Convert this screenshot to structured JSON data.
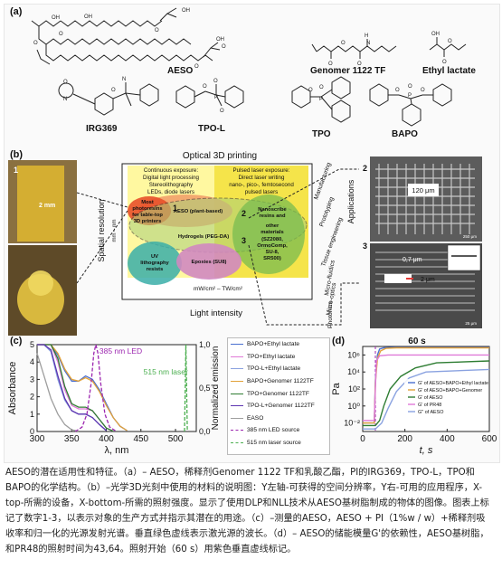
{
  "panel_a": {
    "label": "(a)",
    "compounds": [
      "AESO",
      "Genomer 1122 TF",
      "Ethyl lactate",
      "IRG369",
      "TPO-L",
      "TPO",
      "BAPO"
    ]
  },
  "panel_b": {
    "label": "(b)",
    "title": "Optical 3D printing",
    "left_box": [
      "Continuous exposure:",
      "Digital light processing",
      "Stereolithography",
      "LEDs, diode lasers"
    ],
    "right_box": [
      "Pulsed laser exposure:",
      "Direct laser writing",
      "nano-, pico-, femtosecond",
      "pulsed lasers"
    ],
    "regions": {
      "most": [
        "Most",
        "photoresins",
        "for table-top",
        "3D printers"
      ],
      "aeso": "AESO (plant-based)",
      "hydrogels": "Hydrogels (PEG-DA)",
      "nanoscribe": [
        "Nanoscribe",
        "resins and",
        "other",
        "materials",
        "(SZ2080,",
        "OrmoComp,",
        "SU-8,",
        "SR500)"
      ],
      "uv": [
        "UV",
        "lithography",
        "resists"
      ],
      "epoxies": "Epoxies (SU8)"
    },
    "numbers": [
      "1",
      "2",
      "3"
    ],
    "ylabel": "Spatial resolution",
    "yunit": "mm – nm",
    "xunit": "mW/cm² – TW/cm²",
    "xlabel": "Light intensity",
    "applications_title": "Applications",
    "applications": [
      "Manufacturing",
      "Prototyping",
      "Tissue engineering",
      "Micro-fluidics",
      "Micro-optics",
      "Photonics"
    ],
    "photo_labels": [
      "1",
      "2",
      "3"
    ],
    "annotations": {
      "mm": "2 mm",
      "um120": "120 μm",
      "um07": "0,7 μm",
      "um2": "2 μm",
      "scale250": "250 μm",
      "scale25": "25 μm"
    }
  },
  "panel_c": {
    "label": "(c)",
    "chart_data": {
      "type": "line",
      "xlabel": "λ, nm",
      "ylabel": "Absorbance",
      "y2label": "Normalized emission",
      "xlim": [
        300,
        530
      ],
      "ylim": [
        0,
        5
      ],
      "y2lim": [
        0,
        1.0
      ],
      "xticks": [
        300,
        350,
        400,
        450,
        500
      ],
      "yticks": [
        0,
        1,
        2,
        3,
        4,
        5
      ],
      "y2ticks": [
        "0,0",
        "0,5",
        "1,0"
      ],
      "annotations": [
        "385 nm LED",
        "515 nm laser"
      ],
      "series": [
        {
          "name": "BAPO+Ethyl lactate",
          "color": "#4a6fd0",
          "x": [
            300,
            310,
            320,
            330,
            340,
            350,
            360,
            370,
            380,
            390,
            400,
            410,
            420,
            430
          ],
          "y": [
            5,
            5,
            5,
            4.4,
            3.5,
            2.9,
            2.9,
            3.2,
            3.0,
            2.4,
            1.6,
            0.8,
            0.3,
            0.05
          ]
        },
        {
          "name": "TPO+Ethyl lactate",
          "color": "#e07ad8",
          "x": [
            300,
            310,
            320,
            330,
            340,
            350,
            360,
            370,
            380,
            390,
            400,
            410
          ],
          "y": [
            5,
            5,
            5,
            4.0,
            2.4,
            1.5,
            1.3,
            1.3,
            1.2,
            0.7,
            0.2,
            0.02
          ]
        },
        {
          "name": "TPO-L+Ethyl lactate",
          "color": "#8aa2e0",
          "x": [
            300,
            310,
            320,
            330,
            340,
            350,
            360,
            370,
            380,
            390,
            400
          ],
          "y": [
            5,
            5,
            4.6,
            3.0,
            1.8,
            1.2,
            1.0,
            1.0,
            0.8,
            0.4,
            0.05
          ]
        },
        {
          "name": "BAPO+Genomer 1122TF",
          "color": "#e2a23a",
          "x": [
            300,
            310,
            320,
            330,
            340,
            350,
            360,
            370,
            380,
            390,
            400,
            410,
            420,
            430
          ],
          "y": [
            5,
            5,
            5,
            4.5,
            3.6,
            3.0,
            2.9,
            3.1,
            2.9,
            2.3,
            1.5,
            0.8,
            0.3,
            0.05
          ]
        },
        {
          "name": "TPO+Genomer 1122TF",
          "color": "#2e7d32",
          "x": [
            300,
            310,
            320,
            330,
            340,
            350,
            360,
            370,
            380,
            390,
            400,
            410
          ],
          "y": [
            5,
            5,
            5,
            4.2,
            2.6,
            1.6,
            1.4,
            1.4,
            1.2,
            0.7,
            0.2,
            0.02
          ]
        },
        {
          "name": "TPO-L+Genomer 1122TF",
          "color": "#5e35b1",
          "x": [
            300,
            310,
            320,
            330,
            340,
            350,
            360,
            370,
            380,
            390,
            400
          ],
          "y": [
            5,
            5,
            4.7,
            3.2,
            1.9,
            1.2,
            1.0,
            1.0,
            0.8,
            0.4,
            0.05
          ]
        },
        {
          "name": "EASO",
          "color": "#9e9e9e",
          "x": [
            300,
            310,
            320,
            330,
            340,
            350,
            360
          ],
          "y": [
            4.5,
            3.2,
            1.9,
            1.0,
            0.4,
            0.1,
            0.02
          ]
        },
        {
          "name": "385 nm LED source",
          "color": "#9c27b0",
          "dash": "4 2",
          "axis": "y2",
          "x": [
            355,
            365,
            372,
            378,
            382,
            385,
            388,
            392,
            398,
            405,
            415
          ],
          "y": [
            0,
            0.05,
            0.2,
            0.55,
            0.9,
            1.0,
            0.9,
            0.55,
            0.2,
            0.05,
            0
          ]
        },
        {
          "name": "515 nm laser source",
          "color": "#4caf50",
          "dash": "4 2",
          "axis": "y2",
          "x": [
            513,
            514,
            515,
            516,
            517
          ],
          "y": [
            0,
            0.5,
            1.0,
            0.5,
            0
          ]
        }
      ]
    }
  },
  "panel_d": {
    "label": "(d)",
    "chart_data": {
      "type": "line",
      "title": "60 s",
      "xlabel": "t, s",
      "ylabel": "Pa",
      "xlim": [
        0,
        600
      ],
      "ylim_log10": [
        -3,
        7
      ],
      "xticks": [
        0,
        200,
        400,
        600
      ],
      "yticks": [
        "10⁻²",
        "10⁰",
        "10²",
        "10⁴",
        "10⁶"
      ],
      "marker_x": 60,
      "series": [
        {
          "name": "G' of AESO+BAPO+Ethyl lactate",
          "color": "#4a6fd0",
          "x": [
            0,
            55,
            60,
            70,
            80,
            100,
            150,
            300,
            600
          ],
          "y": [
            0.01,
            0.01,
            1000,
            1000000,
            5000000,
            7000000,
            8000000,
            8000000,
            8000000
          ]
        },
        {
          "name": "G' of AESO+BAPO+Genomer",
          "color": "#e2a23a",
          "x": [
            0,
            55,
            60,
            70,
            85,
            110,
            160,
            300,
            600
          ],
          "y": [
            0.01,
            0.01,
            500,
            400000,
            3000000,
            6000000,
            7000000,
            7000000,
            7000000
          ]
        },
        {
          "name": "G' of AESO",
          "color": "#2e7d32",
          "x": [
            0,
            60,
            80,
            100,
            130,
            180,
            250,
            350,
            600
          ],
          "y": [
            0.005,
            0.005,
            0.02,
            1,
            100,
            3000,
            30000,
            120000,
            200000
          ]
        },
        {
          "name": "G' of PR48",
          "color": "#e07ad8",
          "x": [
            0,
            55,
            60,
            65,
            80,
            120,
            200,
            600
          ],
          "y": [
            0.02,
            0.02,
            100,
            200000,
            800000,
            1000000,
            1000000,
            1000000
          ]
        },
        {
          "name": "G'' of AESO",
          "color": "#8aa2e0",
          "x": [
            0,
            60,
            90,
            120,
            160,
            220,
            300,
            600
          ],
          "y": [
            0.002,
            0.002,
            0.01,
            0.5,
            50,
            2000,
            10000,
            20000
          ]
        }
      ]
    }
  },
  "caption": "AESO的潜在适用性和特征。（a）– AESO，稀释剂Genomer 1122 TF和乳酸乙酯，PI的IRG369，TPO-L，TPO和BAPO的化学结构。（b）–光学3D光刻中使用的材料的说明图：Y左轴-可获得的空间分辨率，Y右-可用的应用程序，X-top-所需的设备，X-bottom-所需的照射强度。显示了使用DLP和NLL技术从AESO基树脂制成的物体的图像。图表上标记了数字1-3，以表示对象的生产方式并指示其潜在的用途。（c）–测量的AESO，AESO + PI（1%w / w）+稀释剂吸收率和归一化的光源发射光谱。垂直绿色虚线表示激光源的波长。（d）– AESO的储能模量G'的依赖性，AESO基树脂，和PR48的照射时间为43,64。照射开始（60 s）用紫色垂直虚线标记。"
}
